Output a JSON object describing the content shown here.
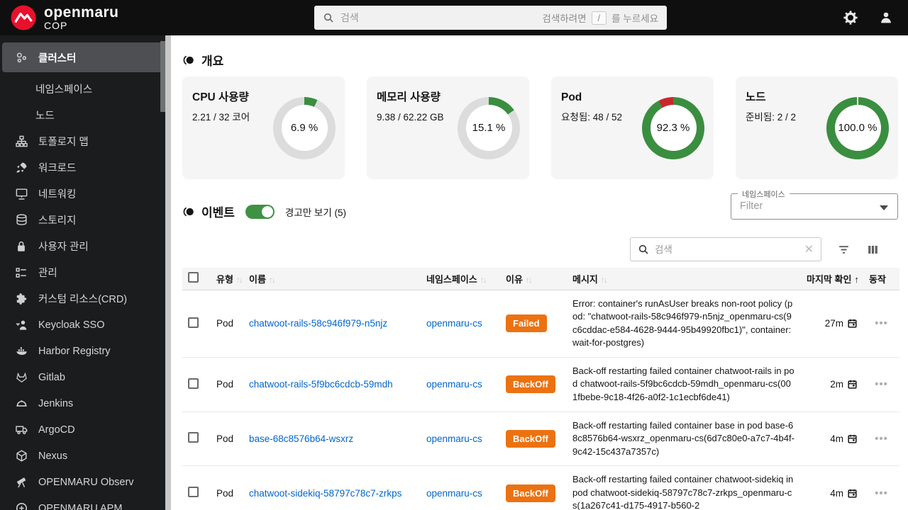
{
  "topbar": {
    "brand": {
      "title": "openmaru",
      "subtitle": "COP"
    },
    "search": {
      "placeholder": "검색",
      "hint_prefix": "검색하려면",
      "hint_key": "/",
      "hint_suffix": "를 누르세요"
    }
  },
  "sidebar": {
    "items": [
      {
        "id": "cluster",
        "label": "클러스터",
        "icon": "cluster-icon",
        "selected": true
      },
      {
        "id": "namespaces",
        "label": "네임스페이스",
        "sub": true
      },
      {
        "id": "nodes",
        "label": "노드",
        "sub": true
      },
      {
        "id": "topology-map",
        "label": "토폴로지 맵",
        "icon": "topology-icon"
      },
      {
        "id": "workloads",
        "label": "워크로드",
        "icon": "workload-icon"
      },
      {
        "id": "networking",
        "label": "네트워킹",
        "icon": "networking-icon"
      },
      {
        "id": "storage",
        "label": "스토리지",
        "icon": "storage-icon"
      },
      {
        "id": "user-management",
        "label": "사용자 관리",
        "icon": "lock-icon"
      },
      {
        "id": "administration",
        "label": "관리",
        "icon": "admin-icon"
      },
      {
        "id": "custom-resources-crd",
        "label": "커스텀 리소스(CRD)",
        "icon": "puzzle-icon"
      },
      {
        "id": "keycloak-sso",
        "label": "Keycloak SSO",
        "icon": "keycloak-icon"
      },
      {
        "id": "harbor-registry",
        "label": "Harbor Registry",
        "icon": "harbor-icon"
      },
      {
        "id": "gitlab",
        "label": "Gitlab",
        "icon": "gitlab-icon"
      },
      {
        "id": "jenkins",
        "label": "Jenkins",
        "icon": "jenkins-icon"
      },
      {
        "id": "argocd",
        "label": "ArgoCD",
        "icon": "argocd-icon"
      },
      {
        "id": "nexus",
        "label": "Nexus",
        "icon": "nexus-icon"
      },
      {
        "id": "openmaru-observ",
        "label": "OPENMARU Observ",
        "icon": "telescope-icon"
      },
      {
        "id": "openmaru-apm",
        "label": "OPENMARU APM",
        "icon": "plus-circle-icon"
      }
    ]
  },
  "overview": {
    "title": "개요",
    "cards": [
      {
        "title": "CPU 사용량",
        "subtitle": "2.21 / 32 코어",
        "percent": 6.9,
        "percent_label": "6.9 %",
        "remainder": "gray"
      },
      {
        "title": "메모리 사용량",
        "subtitle": "9.38 / 62.22 GB",
        "percent": 15.1,
        "percent_label": "15.1 %",
        "remainder": "gray"
      },
      {
        "title": "Pod",
        "subtitle": "요청됨: 48 / 52",
        "percent": 92.3,
        "percent_label": "92.3 %",
        "remainder": "red"
      },
      {
        "title": "노드",
        "subtitle": "준비됨: 2 / 2",
        "percent": 100.0,
        "percent_label": "100.0 %",
        "remainder": "none",
        "notch": true
      }
    ]
  },
  "events": {
    "title": "이벤트",
    "warning_toggle": {
      "on": true,
      "label": "경고만 보기 (5)"
    },
    "namespace_filter": {
      "label": "네임스페이스",
      "placeholder": "Filter"
    },
    "search_placeholder": "검색",
    "table": {
      "columns": [
        {
          "key": "type",
          "label": "유형",
          "sortable": true
        },
        {
          "key": "name",
          "label": "이름",
          "sortable": true
        },
        {
          "key": "namespace",
          "label": "네임스페이스",
          "sortable": true
        },
        {
          "key": "reason",
          "label": "이유",
          "sortable": true
        },
        {
          "key": "message",
          "label": "메시지",
          "sortable": true
        },
        {
          "key": "last_seen",
          "label": "마지막 확인",
          "sortable": true,
          "sorted": "asc"
        },
        {
          "key": "actions",
          "label": "동작",
          "sortable": false
        }
      ],
      "rows": [
        {
          "type": "Pod",
          "name": "chatwoot-rails-58c946f979-n5njz",
          "namespace": "openmaru-cs",
          "reason": "Failed",
          "message": "Error: container's runAsUser breaks non-root policy (pod: \"chatwoot-rails-58c946f979-n5njz_openmaru-cs(9c6cddac-e584-4628-9444-95b49920fbc1)\", container: wait-for-postgres)",
          "last_seen": "27m"
        },
        {
          "type": "Pod",
          "name": "chatwoot-rails-5f9bc6cdcb-59mdh",
          "namespace": "openmaru-cs",
          "reason": "BackOff",
          "message": "Back-off restarting failed container chatwoot-rails in pod chatwoot-rails-5f9bc6cdcb-59mdh_openmaru-cs(001fbebe-9c18-4f26-a0f2-1c1ecbf6de41)",
          "last_seen": "2m"
        },
        {
          "type": "Pod",
          "name": "base-68c8576b64-wsxrz",
          "namespace": "openmaru-cs",
          "reason": "BackOff",
          "message": "Back-off restarting failed container base in pod base-68c8576b64-wsxrz_openmaru-cs(6d7c80e0-a7c7-4b4f-9c42-15c437a7357c)",
          "last_seen": "4m"
        },
        {
          "type": "Pod",
          "name": "chatwoot-sidekiq-58797c78c7-zrkps",
          "namespace": "openmaru-cs",
          "reason": "BackOff",
          "message": "Back-off restarting failed container chatwoot-sidekiq in pod chatwoot-sidekiq-58797c78c7-zrkps_openmaru-cs(1a267c41-d175-4917-b560-2",
          "last_seen": "4m"
        }
      ]
    }
  },
  "colors": {
    "accent_green": "#3a8e3f",
    "donut_gray": "#dcdcdc",
    "donut_red": "#c9272e",
    "badge_orange": "#ec7211",
    "link_blue": "#0066cc",
    "topbar_bg": "#0f0f0f",
    "sidebar_bg": "#1b1c1e",
    "sidebar_selected": "#4d4f52"
  }
}
